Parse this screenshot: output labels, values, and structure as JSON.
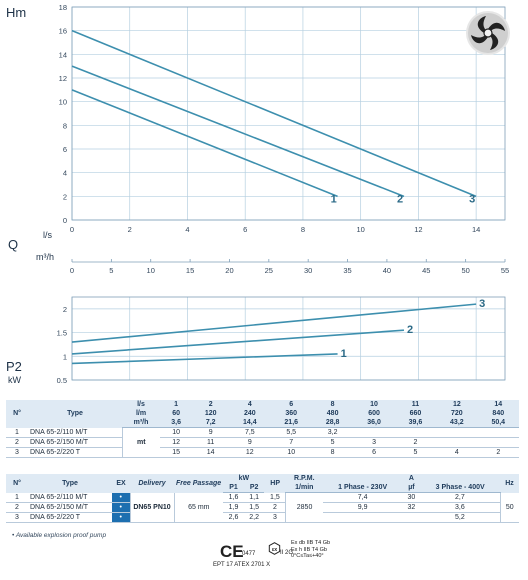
{
  "chart_data": [
    {
      "type": "line",
      "ylabel": "Hm",
      "xlabel": "l/s",
      "xlim": [
        0,
        15
      ],
      "ylim": [
        0,
        18
      ],
      "xticks": [
        0,
        2,
        4,
        6,
        8,
        10,
        12,
        14
      ],
      "yticks": [
        0,
        2,
        4,
        6,
        8,
        10,
        12,
        14,
        16,
        18
      ],
      "grid": true,
      "series": [
        {
          "name": "1",
          "x": [
            0,
            9.2
          ],
          "y": [
            11.0,
            2.0
          ]
        },
        {
          "name": "2",
          "x": [
            0,
            11.5
          ],
          "y": [
            13.0,
            2.0
          ]
        },
        {
          "name": "3",
          "x": [
            0,
            14.0
          ],
          "y": [
            16.0,
            2.0
          ]
        }
      ]
    },
    {
      "type": "axis",
      "title": "Q",
      "xlabel": "m³/h",
      "xlim": [
        0,
        55
      ],
      "xticks": [
        0,
        5,
        10,
        15,
        20,
        25,
        30,
        35,
        40,
        45,
        50,
        55
      ]
    },
    {
      "type": "line",
      "ylabel": "P2",
      "yunit": "kW",
      "xlim": [
        0,
        15
      ],
      "ylim": [
        0.5,
        2.25
      ],
      "yticks": [
        0.5,
        1,
        1.5,
        2
      ],
      "grid": true,
      "series": [
        {
          "name": "1",
          "x": [
            0,
            9.2
          ],
          "y": [
            0.85,
            1.05
          ]
        },
        {
          "name": "2",
          "x": [
            0,
            11.5
          ],
          "y": [
            1.05,
            1.55
          ]
        },
        {
          "name": "3",
          "x": [
            0,
            14.0
          ],
          "y": [
            1.3,
            2.1
          ]
        }
      ]
    }
  ],
  "colors": {
    "curve": "#3d8fae",
    "grid": "#b5cfe0",
    "label": "#2b6a87",
    "header_bg": "#dfeaf4",
    "ex_bg": "#1d6fb0"
  },
  "impeller_icon": "impeller-icon",
  "perf_table": {
    "h_no": "N°",
    "h_type": "Type",
    "units": [
      "l/s",
      "l/m",
      "m³/h"
    ],
    "flow_ls": [
      "1",
      "2",
      "4",
      "6",
      "8",
      "10",
      "11",
      "12",
      "14"
    ],
    "flow_lm": [
      "60",
      "120",
      "240",
      "360",
      "480",
      "600",
      "660",
      "720",
      "840"
    ],
    "flow_m3h": [
      "3,6",
      "7,2",
      "14,4",
      "21,6",
      "28,8",
      "36,0",
      "39,6",
      "43,2",
      "50,4"
    ],
    "head_unit": "mt",
    "rows": [
      {
        "no": "1",
        "type": "DNA 65-2/110 M/T",
        "vals": [
          "10",
          "9",
          "7,5",
          "5,5",
          "3,2",
          "",
          "",
          "",
          ""
        ]
      },
      {
        "no": "2",
        "type": "DNA 65-2/150 M/T",
        "vals": [
          "12",
          "11",
          "9",
          "7",
          "5",
          "3",
          "2",
          "",
          ""
        ]
      },
      {
        "no": "3",
        "type": "DNA 65-2/220 T",
        "vals": [
          "15",
          "14",
          "12",
          "10",
          "8",
          "6",
          "5",
          "4",
          "2"
        ]
      }
    ]
  },
  "spec_table": {
    "h_no": "N°",
    "h_type": "Type",
    "h_ex": "EX",
    "h_delivery": "Delivery",
    "h_passage": "Free Passage",
    "h_kw": "kW",
    "h_p1": "P1",
    "h_p2": "P2",
    "h_hp": "HP",
    "h_rpm": "R.P.M.",
    "h_rpm2": "1/min",
    "h_amp": "A",
    "h_1ph": "1 Phase - 230V",
    "h_uf": "µf",
    "h_3ph": "3 Phase - 400V",
    "h_hz": "Hz",
    "delivery": "DN65 PN10",
    "passage": "65 mm",
    "rpm": "2850",
    "hz": "50",
    "rows": [
      {
        "no": "1",
        "type": "DNA 65-2/110 M/T",
        "ex": "•",
        "p1": "1,6",
        "p2": "1,1",
        "hp": "1,5",
        "a1": "7,4",
        "uf": "30",
        "a3": "2,7"
      },
      {
        "no": "2",
        "type": "DNA 65-2/150 M/T",
        "ex": "•",
        "p1": "1,9",
        "p2": "1,5",
        "hp": "2",
        "a1": "9,9",
        "uf": "32",
        "a3": "3,6"
      },
      {
        "no": "3",
        "type": "DNA 65-2/220 T",
        "ex": "•",
        "p1": "2,6",
        "p2": "2,2",
        "hp": "3",
        "a1": "",
        "uf": "",
        "a3": "5,2"
      }
    ]
  },
  "footer": {
    "note": "• Available explosion proof pump",
    "ce": "CE",
    "ce_num": "0477",
    "ept": "EPT 17 ATEX 2701 X",
    "ex_sub": "II 2G",
    "atex_lines": [
      "Ex db IIB T4 Gb",
      "Ex h IIB T4 Gb",
      "0°C≤Ta≤+40°"
    ]
  }
}
